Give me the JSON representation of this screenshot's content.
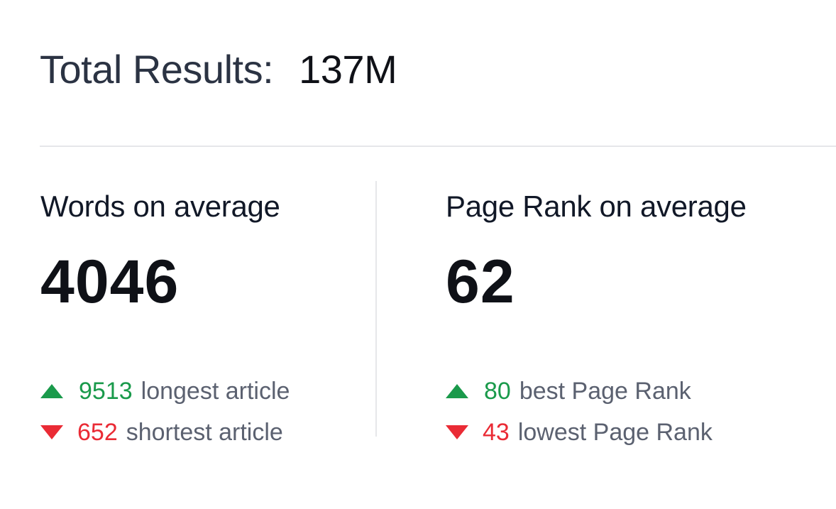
{
  "header": {
    "label": "Total Results:",
    "value": "137M"
  },
  "panels": [
    {
      "title": "Words on average",
      "value": "4046",
      "stats": [
        {
          "direction": "up",
          "icon": "triangle-up-icon",
          "number": "9513",
          "label": "longest article"
        },
        {
          "direction": "down",
          "icon": "triangle-down-icon",
          "number": "652",
          "label": "shortest article"
        }
      ]
    },
    {
      "title": "Page Rank on average",
      "value": "62",
      "stats": [
        {
          "direction": "up",
          "icon": "triangle-up-icon",
          "number": "80",
          "label": "best Page Rank"
        },
        {
          "direction": "down",
          "icon": "triangle-down-icon",
          "number": "43",
          "label": "lowest Page Rank"
        }
      ]
    }
  ],
  "colors": {
    "up": "#1a9a4b",
    "down": "#ea2b35",
    "muted": "#5b6170",
    "divider": "#e6e7ea"
  }
}
